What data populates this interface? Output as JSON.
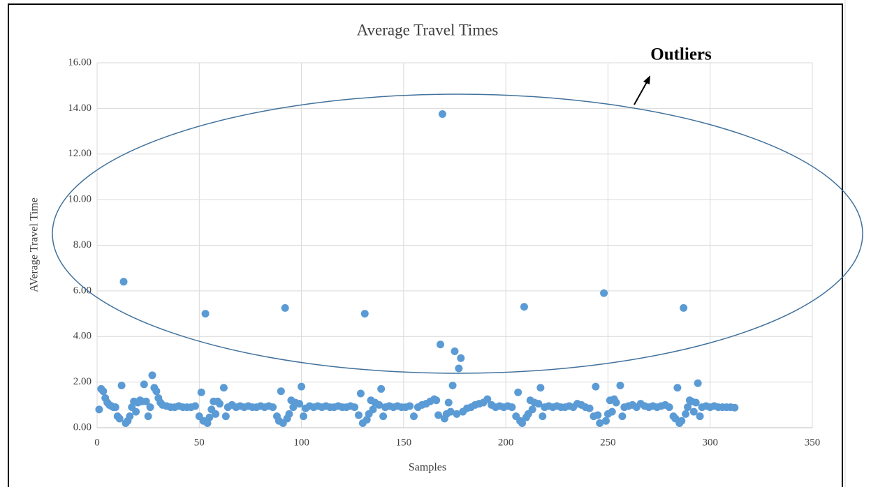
{
  "chart_data": {
    "type": "scatter",
    "title": "Average Travel Times",
    "x_label": "Samples",
    "y_label": "AVerage Travel Time",
    "annotation": "Outliers",
    "color": "#5b9bd5",
    "grid": true,
    "xlim": [
      0,
      350
    ],
    "xticks": [
      0,
      50,
      100,
      150,
      200,
      250,
      300,
      350
    ],
    "ylim": [
      0,
      16
    ],
    "yticks": [
      {
        "value": 0,
        "label": "0.00"
      },
      {
        "value": 2,
        "label": "2.00"
      },
      {
        "value": 4,
        "label": "4.00"
      },
      {
        "value": 6,
        "label": "6.00"
      },
      {
        "value": 8,
        "label": "8.00"
      },
      {
        "value": 10,
        "label": "10.00"
      },
      {
        "value": 12,
        "label": "12.00"
      },
      {
        "value": 14,
        "label": "14.00"
      },
      {
        "value": 16,
        "label": "16.00"
      }
    ],
    "x": [
      1,
      2,
      3,
      4,
      5,
      6,
      7,
      8,
      9,
      10,
      11,
      12,
      13,
      14,
      15,
      16,
      17,
      18,
      19,
      20,
      21,
      22,
      23,
      24,
      25,
      26,
      27,
      28,
      29,
      30,
      31,
      32,
      34,
      36,
      38,
      40,
      42,
      44,
      46,
      48,
      50,
      51,
      52,
      53,
      54,
      55,
      56,
      57,
      58,
      59,
      60,
      62,
      63,
      64,
      66,
      68,
      70,
      72,
      74,
      76,
      78,
      80,
      82,
      84,
      86,
      88,
      89,
      90,
      91,
      92,
      93,
      94,
      95,
      96,
      97,
      99,
      100,
      101,
      102,
      104,
      106,
      108,
      110,
      112,
      114,
      116,
      118,
      120,
      122,
      124,
      126,
      128,
      129,
      130,
      131,
      132,
      133,
      134,
      135,
      136,
      138,
      139,
      140,
      141,
      143,
      145,
      147,
      149,
      151,
      153,
      155,
      157,
      159,
      161,
      163,
      165,
      166,
      167,
      168,
      169,
      170,
      171,
      172,
      173,
      174,
      175,
      176,
      177,
      178,
      179,
      181,
      183,
      185,
      187,
      189,
      191,
      193,
      195,
      197,
      199,
      201,
      203,
      205,
      206,
      207,
      208,
      209,
      210,
      211,
      212,
      213,
      214,
      216,
      217,
      218,
      219,
      221,
      223,
      225,
      227,
      229,
      231,
      233,
      235,
      237,
      239,
      241,
      243,
      244,
      245,
      246,
      248,
      249,
      250,
      251,
      252,
      253,
      254,
      256,
      257,
      258,
      260,
      262,
      264,
      266,
      268,
      270,
      272,
      274,
      276,
      278,
      280,
      282,
      283,
      284,
      285,
      286,
      287,
      288,
      289,
      290,
      291,
      292,
      293,
      294,
      295,
      296,
      298,
      300,
      302,
      304,
      306,
      308,
      310,
      312
    ],
    "values": [
      0.8,
      1.7,
      1.6,
      1.3,
      1.1,
      1.0,
      0.95,
      0.9,
      0.9,
      0.5,
      0.4,
      1.85,
      6.4,
      0.2,
      0.3,
      0.5,
      0.9,
      1.15,
      0.7,
      1.1,
      1.2,
      1.15,
      1.9,
      1.15,
      0.5,
      0.9,
      2.3,
      1.75,
      1.6,
      1.3,
      1.1,
      1.0,
      0.95,
      0.9,
      0.9,
      0.95,
      0.9,
      0.9,
      0.9,
      0.95,
      0.5,
      1.55,
      0.3,
      5.0,
      0.2,
      0.45,
      0.8,
      1.15,
      0.6,
      1.15,
      1.05,
      1.75,
      0.5,
      0.9,
      1.0,
      0.9,
      0.95,
      0.9,
      0.95,
      0.9,
      0.9,
      0.95,
      0.9,
      0.95,
      0.9,
      0.5,
      0.3,
      1.6,
      0.2,
      5.25,
      0.4,
      0.6,
      1.2,
      0.9,
      1.1,
      1.05,
      1.8,
      0.5,
      0.85,
      0.95,
      0.9,
      0.95,
      0.9,
      0.95,
      0.9,
      0.9,
      0.95,
      0.9,
      0.9,
      0.95,
      0.9,
      0.55,
      1.5,
      0.2,
      5.0,
      0.35,
      0.6,
      1.2,
      0.8,
      1.1,
      1.0,
      1.7,
      0.5,
      0.9,
      0.95,
      0.9,
      0.95,
      0.9,
      0.9,
      0.95,
      0.5,
      0.9,
      1.0,
      1.05,
      1.15,
      1.25,
      1.2,
      0.55,
      3.65,
      13.75,
      0.4,
      0.6,
      1.1,
      0.7,
      1.85,
      3.35,
      0.6,
      2.6,
      3.05,
      0.7,
      0.85,
      0.9,
      1.0,
      1.05,
      1.1,
      1.25,
      1.0,
      0.9,
      0.95,
      0.9,
      0.95,
      0.9,
      0.5,
      1.55,
      0.3,
      0.2,
      5.3,
      0.45,
      0.6,
      1.2,
      0.8,
      1.1,
      1.05,
      1.75,
      0.5,
      0.9,
      0.95,
      0.9,
      0.95,
      0.9,
      0.9,
      0.95,
      0.9,
      1.05,
      1.0,
      0.9,
      0.85,
      0.5,
      1.8,
      0.55,
      0.2,
      5.9,
      0.3,
      0.6,
      1.2,
      0.7,
      1.25,
      1.1,
      1.85,
      0.5,
      0.9,
      0.95,
      1.0,
      0.9,
      1.05,
      0.95,
      0.9,
      0.95,
      0.9,
      0.95,
      1.0,
      0.9,
      0.5,
      0.4,
      1.75,
      0.2,
      0.3,
      5.25,
      0.6,
      0.9,
      1.2,
      1.15,
      0.7,
      1.1,
      1.95,
      0.5,
      0.9,
      0.95,
      0.9,
      0.95,
      0.9,
      0.9,
      0.9,
      0.9,
      0.88
    ]
  }
}
